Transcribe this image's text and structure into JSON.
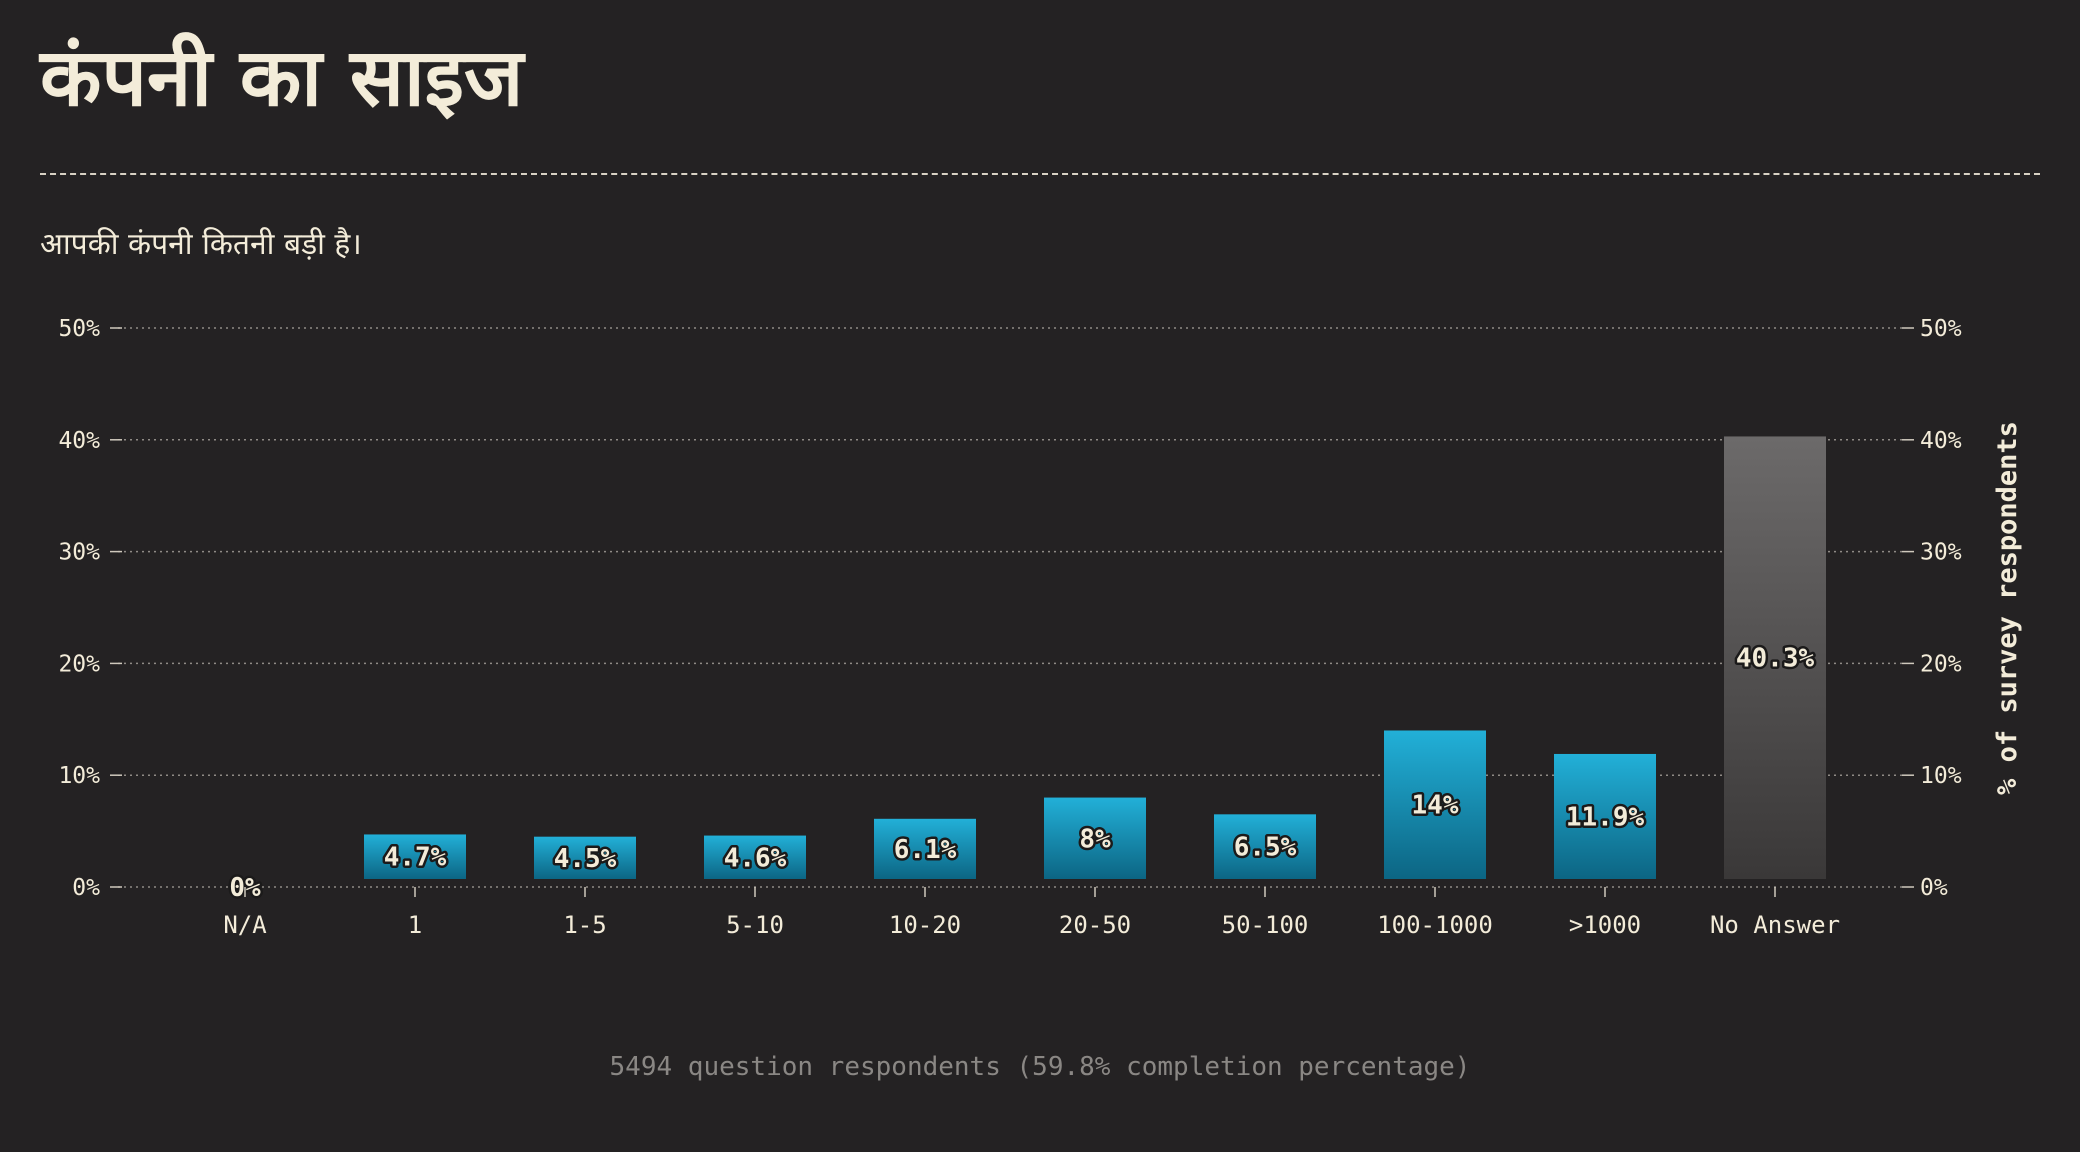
{
  "header": {
    "title": "कंपनी का साइज",
    "subtitle": "आपकी कंपनी कितनी बड़ी है।"
  },
  "footer": {
    "note": "5494 question respondents (59.8% completion percentage)"
  },
  "colors": {
    "background": "#242223",
    "text": "#f3ecd9",
    "bar_top": "#22b0d8",
    "bar_bottom": "#0c6583",
    "no_answer_top": "#6c6a6a",
    "no_answer_bottom": "#3a3838"
  },
  "chart_data": {
    "type": "bar",
    "title": "",
    "xlabel": "",
    "ylabel": "% of survey respondents",
    "ylim": [
      0,
      50
    ],
    "yticks": [
      "0%",
      "10%",
      "20%",
      "30%",
      "40%",
      "50%"
    ],
    "grid": true,
    "categories": [
      "N/A",
      "1",
      "1-5",
      "5-10",
      "10-20",
      "20-50",
      "50-100",
      "100-1000",
      ">1000",
      "No Answer"
    ],
    "values": [
      0,
      4.7,
      4.5,
      4.6,
      6.1,
      8,
      6.5,
      14,
      11.9,
      40.3
    ],
    "value_labels": [
      "0%",
      "4.7%",
      "4.5%",
      "4.6%",
      "6.1%",
      "8%",
      "6.5%",
      "14%",
      "11.9%",
      "40.3%"
    ]
  }
}
